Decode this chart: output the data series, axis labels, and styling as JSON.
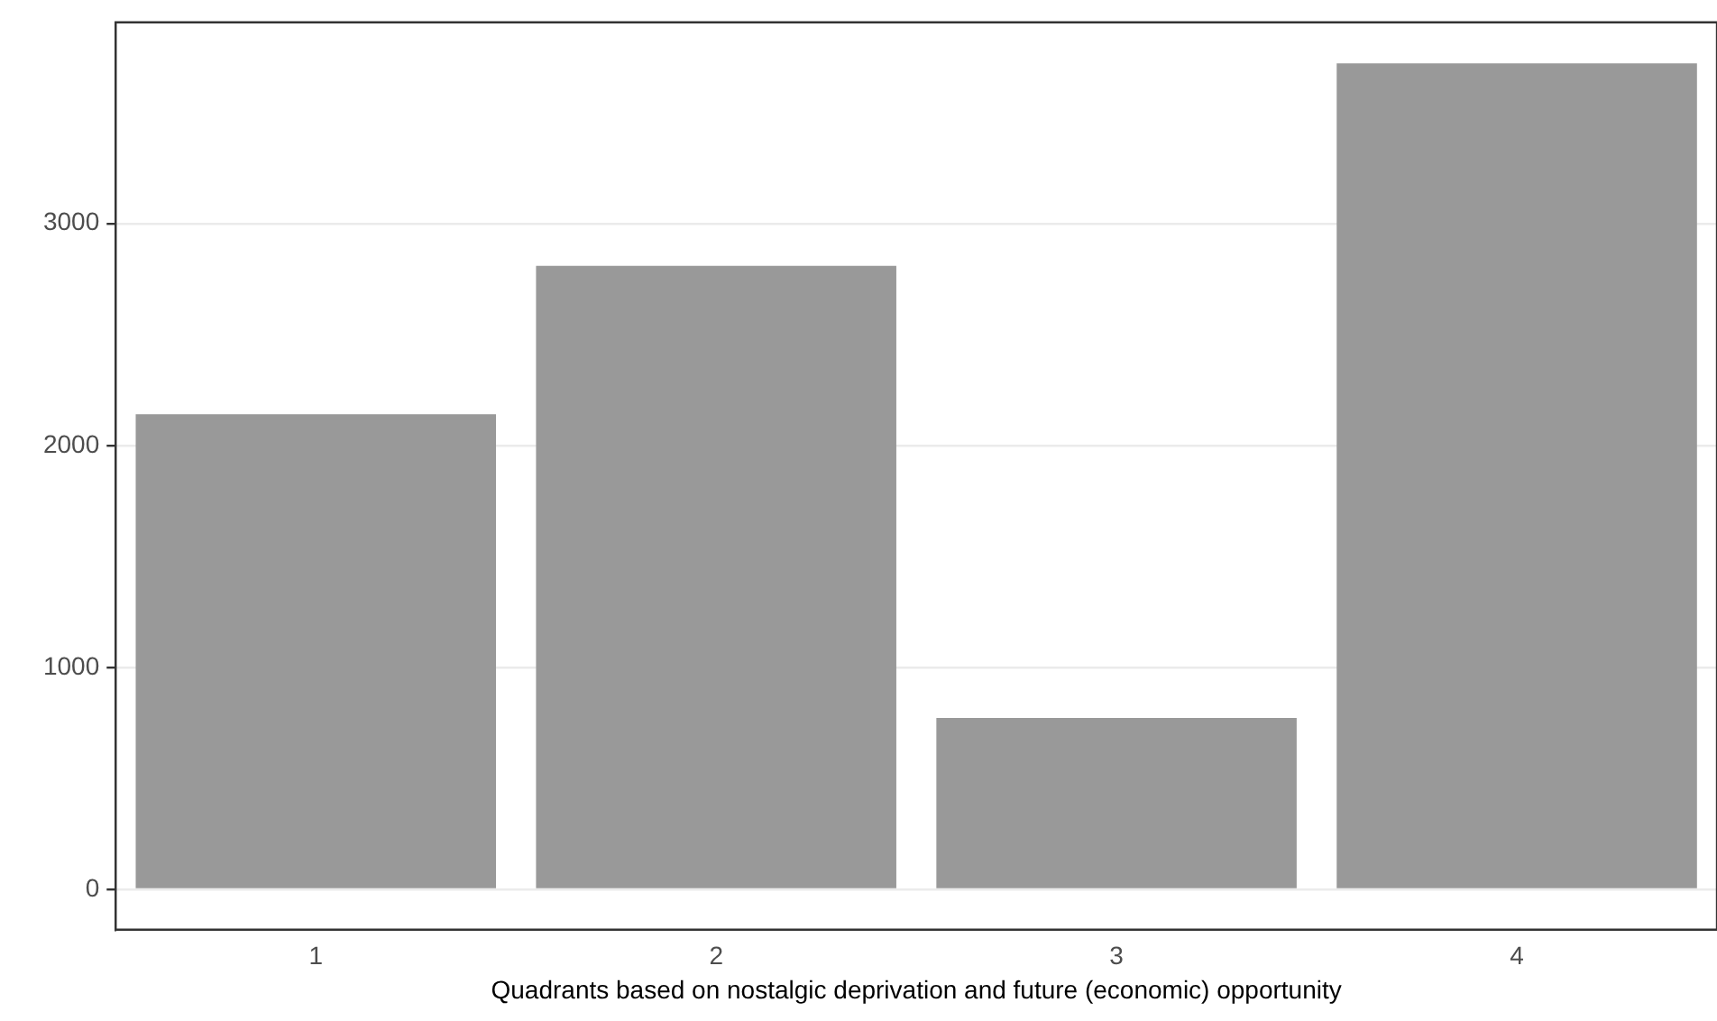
{
  "chart_data": {
    "type": "bar",
    "xlabel": "Quadrants based on nostalgic deprivation and future (economic) opportunity",
    "categories": [
      "1",
      "2",
      "3",
      "4"
    ],
    "values": [
      2141,
      2809,
      772,
      3721
    ],
    "color": "#999999",
    "ylim": [
      -182,
      3906
    ],
    "yticks": [
      0,
      1000,
      2000,
      3000
    ],
    "grid": "y",
    "legend": false
  }
}
